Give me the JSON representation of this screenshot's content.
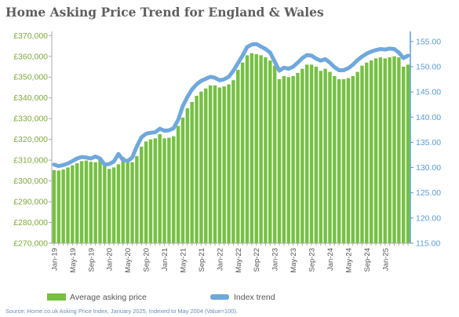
{
  "chart_data": {
    "type": "bar",
    "title": "Home Asking Price Trend for England & Wales",
    "source": "Source: Home.co.uk Asking Price Index, January 2025, Indexed to May 2004 (Value=100).",
    "colors": {
      "bars": "#76c043",
      "line": "#6fa8dc",
      "left_axis": "#7da83a",
      "right_axis": "#5b9bd5"
    },
    "y_left": {
      "range": [
        270000,
        372000
      ],
      "ticks": [
        270000,
        280000,
        290000,
        300000,
        310000,
        320000,
        330000,
        340000,
        350000,
        360000,
        370000
      ],
      "tick_labels": [
        "£270,000",
        "£280,000",
        "£290,000",
        "£300,000",
        "£310,000",
        "£320,000",
        "£330,000",
        "£340,000",
        "£350,000",
        "£360,000",
        "£370,000"
      ]
    },
    "y_right": {
      "range": [
        115.0,
        157.0
      ],
      "ticks": [
        115,
        120,
        125,
        130,
        135,
        140,
        145,
        150,
        155
      ],
      "tick_labels": [
        "115.00",
        "120.00",
        "125.00",
        "130.00",
        "135.00",
        "140.00",
        "145.00",
        "150.00",
        "155.00"
      ]
    },
    "x_tick_labels": [
      "Jan-19",
      "May-19",
      "Sep-19",
      "Jan-20",
      "May-20",
      "Sep-20",
      "Jan-21",
      "May-21",
      "Sep-21",
      "Jan-22",
      "May-22",
      "Sep-22",
      "Jan-23",
      "May-23",
      "Sep-23",
      "Jan-24",
      "May-24",
      "Sep-24",
      "Jan-25"
    ],
    "x_tick_every": 4,
    "series": [
      {
        "name": "Average asking price",
        "type": "bar",
        "axis": "left",
        "values": [
          305200,
          305000,
          305500,
          306500,
          307500,
          308500,
          309500,
          309800,
          309200,
          309000,
          310500,
          308800,
          305800,
          306500,
          308000,
          311500,
          310500,
          309000,
          312000,
          316500,
          319000,
          320000,
          320500,
          322500,
          320500,
          320800,
          321500,
          326500,
          330500,
          335000,
          338000,
          341000,
          343000,
          344500,
          346000,
          346000,
          345000,
          345500,
          346500,
          348500,
          353500,
          357000,
          360500,
          361500,
          361000,
          360500,
          359500,
          358000,
          355500,
          349000,
          350500,
          350000,
          350500,
          352000,
          354000,
          356000,
          356000,
          355000,
          353000,
          354000,
          352500,
          350500,
          349000,
          349000,
          349500,
          350500,
          352500,
          355500,
          357000,
          358000,
          359000,
          359500,
          359000,
          359500,
          360000,
          359500,
          355000,
          356000
        ]
      },
      {
        "name": "Index trend",
        "type": "line",
        "axis": "right",
        "values": [
          130.6,
          130.3,
          130.5,
          130.8,
          131.3,
          131.8,
          132.1,
          132.0,
          131.8,
          132.2,
          131.8,
          130.6,
          130.7,
          131.2,
          132.7,
          131.5,
          131.3,
          132.0,
          134.2,
          136.0,
          136.7,
          136.9,
          137.0,
          137.7,
          137.3,
          137.4,
          137.8,
          139.5,
          142.2,
          144.0,
          145.5,
          146.5,
          147.2,
          147.6,
          148.0,
          147.8,
          147.3,
          147.5,
          148.0,
          149.2,
          150.7,
          152.2,
          153.9,
          154.4,
          154.5,
          154.0,
          153.5,
          152.8,
          151.0,
          149.2,
          149.8,
          149.6,
          150.0,
          150.8,
          151.7,
          152.3,
          152.2,
          151.6,
          151.2,
          151.5,
          150.8,
          149.9,
          149.3,
          149.3,
          149.7,
          150.4,
          151.3,
          152.0,
          152.6,
          153.0,
          153.3,
          153.5,
          153.4,
          153.6,
          153.5,
          152.8,
          151.7,
          152.2
        ]
      }
    ],
    "legend": {
      "placement": "bottom"
    }
  }
}
